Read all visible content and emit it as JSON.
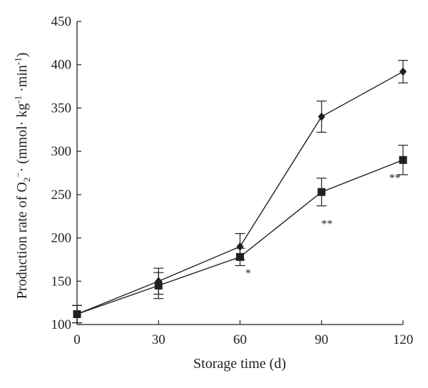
{
  "chart_data": {
    "type": "line",
    "xlabel": "Storage time (d)",
    "ylabel": {
      "prefix": "Production rate of O",
      "sub": "2",
      "sup_charge": "−",
      "middle": "· (mmol· kg",
      "sup_kg": "-1",
      "after_kg": " ·min",
      "sup_min": "-1",
      "suffix": ")"
    },
    "x": [
      0,
      30,
      60,
      90,
      120
    ],
    "xticks": [
      "0",
      "30",
      "60",
      "90",
      "120"
    ],
    "yticks": [
      "100",
      "150",
      "200",
      "250",
      "300",
      "350",
      "400",
      "450"
    ],
    "xlim": [
      0,
      120
    ],
    "ylim": [
      100,
      450
    ],
    "grid": false,
    "series": [
      {
        "marker": "diamond",
        "values": [
          112,
          150,
          190,
          340,
          392
        ],
        "errors": [
          10,
          15,
          15,
          18,
          13
        ]
      },
      {
        "marker": "square",
        "values": [
          112,
          145,
          178,
          253,
          290
        ],
        "errors": [
          10,
          15,
          10,
          16,
          17
        ]
      }
    ],
    "annotations": [
      {
        "text": "*",
        "x": 63,
        "y": 155
      },
      {
        "text": "**",
        "x": 92,
        "y": 212
      },
      {
        "text": "**",
        "x": 117,
        "y": 265
      }
    ]
  }
}
